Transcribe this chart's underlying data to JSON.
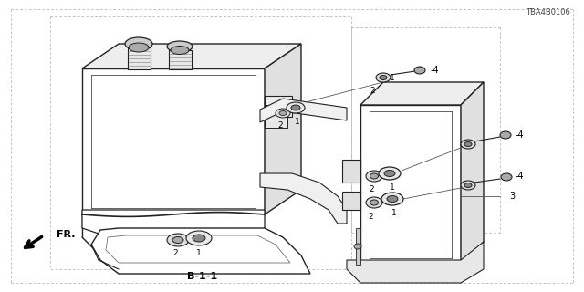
{
  "title": "B-1-1",
  "part_number": "TBA4B0106",
  "bg": "#ffffff",
  "lc": "#222222",
  "lc_light": "#555555",
  "dash_color": "#aaaaaa",
  "figsize": [
    6.4,
    3.2
  ],
  "dpi": 100
}
